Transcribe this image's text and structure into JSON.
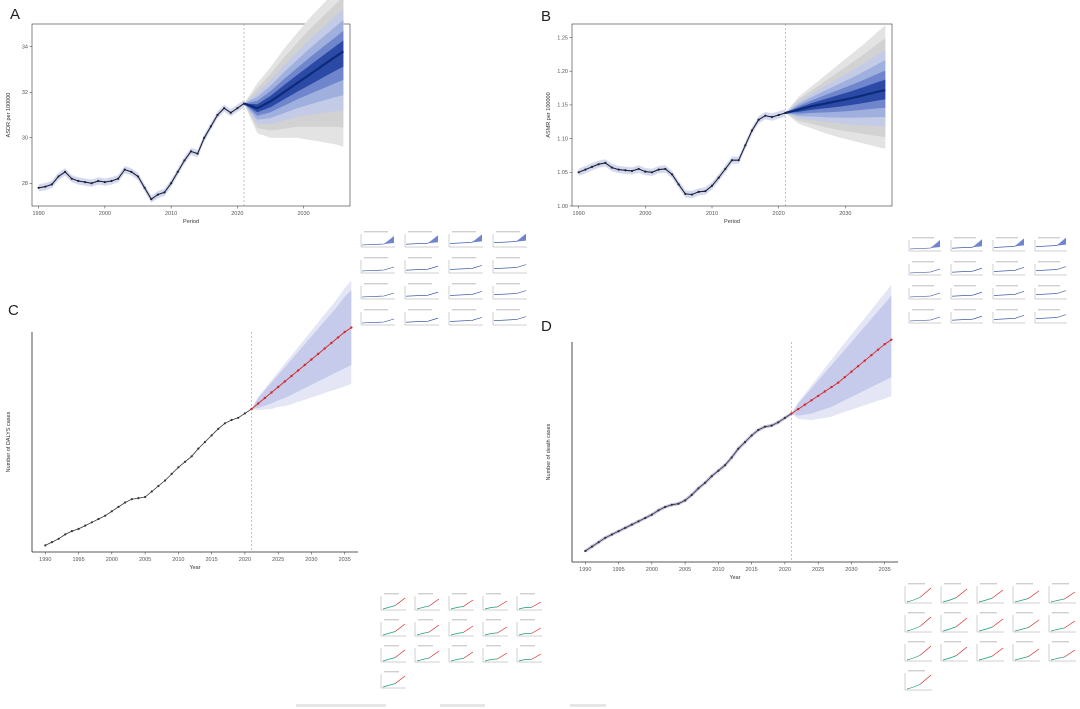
{
  "panels": {
    "A": {
      "letter": "A"
    },
    "B": {
      "letter": "B"
    },
    "C": {
      "letter": "C"
    },
    "D": {
      "letter": "D"
    }
  },
  "colors": {
    "bapc_line": "#1f1f3a",
    "bapc_band_outer": "#d9d9d9",
    "bapc_band_inner": "#8aa0d6",
    "bapc_band_core": "#1f3f9a",
    "arima_fit": "#c9c3e6",
    "arima_pred": "#d62728",
    "arima_band": "#cfd3ef",
    "mini_obs": "#1a9a7a",
    "mini_pred": "#d62728"
  },
  "chart_data": [
    {
      "type": "line",
      "panel": "A",
      "title": "",
      "xlabel": "Period",
      "ylabel": "ASDR per 100000",
      "xlim": [
        1989,
        2037
      ],
      "ylim": [
        27,
        35
      ],
      "xticks": [
        1990,
        2000,
        2010,
        2020,
        2030
      ],
      "yticks": [
        28,
        30,
        32,
        34
      ],
      "cutoff_year": 2021,
      "observed": {
        "x": [
          1990,
          1991,
          1992,
          1993,
          1994,
          1995,
          1996,
          1997,
          1998,
          1999,
          2000,
          2001,
          2002,
          2003,
          2004,
          2005,
          2006,
          2007,
          2008,
          2009,
          2010,
          2011,
          2012,
          2013,
          2014,
          2015,
          2016,
          2017,
          2018,
          2019,
          2020,
          2021
        ],
        "y": [
          27.8,
          27.85,
          27.95,
          28.3,
          28.5,
          28.2,
          28.1,
          28.05,
          28.0,
          28.1,
          28.05,
          28.1,
          28.2,
          28.6,
          28.5,
          28.3,
          27.8,
          27.3,
          27.5,
          27.6,
          28.0,
          28.5,
          29.0,
          29.4,
          29.3,
          30.0,
          30.5,
          31.0,
          31.3,
          31.1,
          31.3,
          31.5
        ]
      },
      "projection": {
        "x": [
          2021,
          2023,
          2025,
          2027,
          2029,
          2031,
          2033,
          2035,
          2036
        ],
        "y": [
          31.5,
          31.3,
          31.6,
          32.0,
          32.4,
          32.8,
          33.2,
          33.6,
          33.8
        ],
        "lower_outer": [
          31.5,
          30.2,
          30.0,
          30.0,
          30.0,
          29.9,
          29.8,
          29.7,
          29.6
        ],
        "upper_outer": [
          31.5,
          32.4,
          33.1,
          33.9,
          34.6,
          35.3,
          35.9,
          36.5,
          36.8
        ]
      }
    },
    {
      "type": "line",
      "panel": "B",
      "title": "",
      "xlabel": "Period",
      "ylabel": "ASMR per 100000",
      "xlim": [
        1989,
        2037
      ],
      "ylim": [
        1.0,
        1.27
      ],
      "xticks": [
        1990,
        2000,
        2010,
        2020,
        2030
      ],
      "yticks": [
        1.0,
        1.05,
        1.1,
        1.15,
        1.2,
        1.25
      ],
      "cutoff_year": 2021,
      "observed": {
        "x": [
          1990,
          1991,
          1992,
          1993,
          1994,
          1995,
          1996,
          1997,
          1998,
          1999,
          2000,
          2001,
          2002,
          2003,
          2004,
          2005,
          2006,
          2007,
          2008,
          2009,
          2010,
          2011,
          2012,
          2013,
          2014,
          2015,
          2016,
          2017,
          2018,
          2019,
          2020,
          2021
        ],
        "y": [
          1.05,
          1.054,
          1.058,
          1.062,
          1.064,
          1.057,
          1.054,
          1.053,
          1.052,
          1.055,
          1.051,
          1.05,
          1.054,
          1.055,
          1.047,
          1.032,
          1.018,
          1.017,
          1.021,
          1.022,
          1.03,
          1.042,
          1.055,
          1.068,
          1.068,
          1.09,
          1.112,
          1.128,
          1.134,
          1.132,
          1.135,
          1.138
        ]
      },
      "projection": {
        "x": [
          2021,
          2023,
          2025,
          2027,
          2029,
          2031,
          2033,
          2035,
          2036
        ],
        "y": [
          1.138,
          1.143,
          1.148,
          1.152,
          1.156,
          1.16,
          1.165,
          1.17,
          1.172
        ],
        "lower_outer": [
          1.138,
          1.122,
          1.115,
          1.108,
          1.102,
          1.097,
          1.092,
          1.087,
          1.085
        ],
        "upper_outer": [
          1.138,
          1.162,
          1.178,
          1.194,
          1.21,
          1.226,
          1.242,
          1.26,
          1.268
        ]
      }
    },
    {
      "type": "line",
      "panel": "C",
      "title": "",
      "xlabel": "Year",
      "ylabel": "Number of DALYS cases",
      "xlim": [
        1988,
        2037
      ],
      "ylim": [
        0,
        1
      ],
      "xticks": [
        1990,
        1995,
        2000,
        2005,
        2010,
        2015,
        2020,
        2025,
        2030,
        2035
      ],
      "yticks": [],
      "cutoff_year": 2021,
      "observed": {
        "x": [
          1990,
          1991,
          1992,
          1993,
          1994,
          1995,
          1996,
          1997,
          1998,
          1999,
          2000,
          2001,
          2002,
          2003,
          2004,
          2005,
          2006,
          2007,
          2008,
          2009,
          2010,
          2011,
          2012,
          2013,
          2014,
          2015,
          2016,
          2017,
          2018,
          2019,
          2020,
          2021
        ],
        "y": [
          0.03,
          0.045,
          0.06,
          0.08,
          0.095,
          0.105,
          0.12,
          0.135,
          0.15,
          0.165,
          0.185,
          0.205,
          0.225,
          0.24,
          0.245,
          0.25,
          0.275,
          0.3,
          0.325,
          0.355,
          0.385,
          0.41,
          0.435,
          0.47,
          0.5,
          0.53,
          0.56,
          0.585,
          0.6,
          0.61,
          0.63,
          0.65
        ]
      },
      "projection": {
        "x": [
          2021,
          2022,
          2023,
          2024,
          2025,
          2026,
          2027,
          2028,
          2029,
          2030,
          2031,
          2032,
          2033,
          2034,
          2035,
          2036
        ],
        "y": [
          0.65,
          0.675,
          0.7,
          0.725,
          0.75,
          0.775,
          0.8,
          0.825,
          0.85,
          0.875,
          0.9,
          0.925,
          0.95,
          0.975,
          1.0,
          1.02
        ],
        "lower": [
          0.65,
          0.655,
          0.665,
          0.675,
          0.69,
          0.7,
          0.715,
          0.73,
          0.745,
          0.76,
          0.775,
          0.79,
          0.805,
          0.82,
          0.835,
          0.85
        ],
        "upper": [
          0.65,
          0.7,
          0.735,
          0.77,
          0.805,
          0.84,
          0.875,
          0.91,
          0.945,
          0.98,
          1.015,
          1.05,
          1.085,
          1.12,
          1.16,
          1.19
        ]
      }
    },
    {
      "type": "line",
      "panel": "D",
      "title": "",
      "xlabel": "Year",
      "ylabel": "Number of death cases",
      "xlim": [
        1988,
        2037
      ],
      "ylim": [
        0,
        1
      ],
      "xticks": [
        1990,
        1995,
        2000,
        2005,
        2010,
        2015,
        2020,
        2025,
        2030,
        2035
      ],
      "yticks": [],
      "cutoff_year": 2021,
      "observed": {
        "x": [
          1990,
          1991,
          1992,
          1993,
          1994,
          1995,
          1996,
          1997,
          1998,
          1999,
          2000,
          2001,
          2002,
          2003,
          2004,
          2005,
          2006,
          2007,
          2008,
          2009,
          2010,
          2011,
          2012,
          2013,
          2014,
          2015,
          2016,
          2017,
          2018,
          2019,
          2020,
          2021
        ],
        "y": [
          0.05,
          0.07,
          0.09,
          0.11,
          0.125,
          0.14,
          0.155,
          0.17,
          0.185,
          0.2,
          0.215,
          0.235,
          0.25,
          0.26,
          0.265,
          0.28,
          0.305,
          0.335,
          0.36,
          0.39,
          0.415,
          0.44,
          0.475,
          0.515,
          0.545,
          0.575,
          0.6,
          0.615,
          0.62,
          0.635,
          0.655,
          0.675
        ]
      },
      "projection": {
        "x": [
          2021,
          2022,
          2023,
          2024,
          2025,
          2026,
          2027,
          2028,
          2029,
          2030,
          2031,
          2032,
          2033,
          2034,
          2035,
          2036
        ],
        "y": [
          0.675,
          0.695,
          0.715,
          0.735,
          0.755,
          0.775,
          0.795,
          0.815,
          0.84,
          0.865,
          0.89,
          0.915,
          0.94,
          0.965,
          0.99,
          1.01
        ],
        "lower": [
          0.675,
          0.665,
          0.67,
          0.675,
          0.685,
          0.695,
          0.705,
          0.72,
          0.735,
          0.75,
          0.765,
          0.78,
          0.795,
          0.81,
          0.825,
          0.84
        ],
        "upper": [
          0.675,
          0.72,
          0.755,
          0.79,
          0.825,
          0.86,
          0.895,
          0.93,
          0.965,
          1.0,
          1.035,
          1.07,
          1.105,
          1.14,
          1.175,
          1.21
        ]
      }
    }
  ],
  "mini_panels": {
    "B_grid": {
      "count": 16
    },
    "A_grid": {
      "count": 16
    },
    "C_grid": {
      "count": 16
    },
    "D_grid": {
      "count": 16
    }
  }
}
